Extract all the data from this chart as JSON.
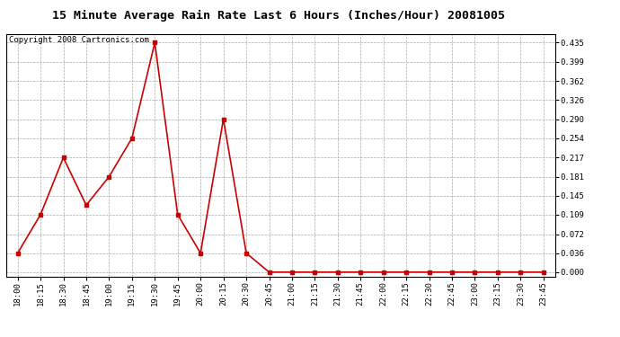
{
  "title": "15 Minute Average Rain Rate Last 6 Hours (Inches/Hour) 20081005",
  "copyright_text": "Copyright 2008 Cartronics.com",
  "x_labels": [
    "18:00",
    "18:15",
    "18:30",
    "18:45",
    "19:00",
    "19:15",
    "19:30",
    "19:45",
    "20:00",
    "20:15",
    "20:30",
    "20:45",
    "21:00",
    "21:15",
    "21:30",
    "21:45",
    "22:00",
    "22:15",
    "22:30",
    "22:45",
    "23:00",
    "23:15",
    "23:30",
    "23:45"
  ],
  "y_values": [
    0.036,
    0.109,
    0.217,
    0.127,
    0.181,
    0.254,
    0.435,
    0.109,
    0.036,
    0.29,
    0.036,
    0.0,
    0.0,
    0.0,
    0.0,
    0.0,
    0.0,
    0.0,
    0.0,
    0.0,
    0.0,
    0.0,
    0.0,
    0.0
  ],
  "y_ticks": [
    0.0,
    0.036,
    0.072,
    0.109,
    0.145,
    0.181,
    0.217,
    0.254,
    0.29,
    0.326,
    0.362,
    0.399,
    0.435
  ],
  "line_color": "#cc0000",
  "marker": "s",
  "marker_size": 2.5,
  "line_width": 1.2,
  "background_color": "#ffffff",
  "grid_color": "#aaaaaa",
  "title_fontsize": 9.5,
  "copyright_fontsize": 6.5,
  "tick_fontsize": 6.5,
  "ylim": [
    -0.008,
    0.452
  ]
}
